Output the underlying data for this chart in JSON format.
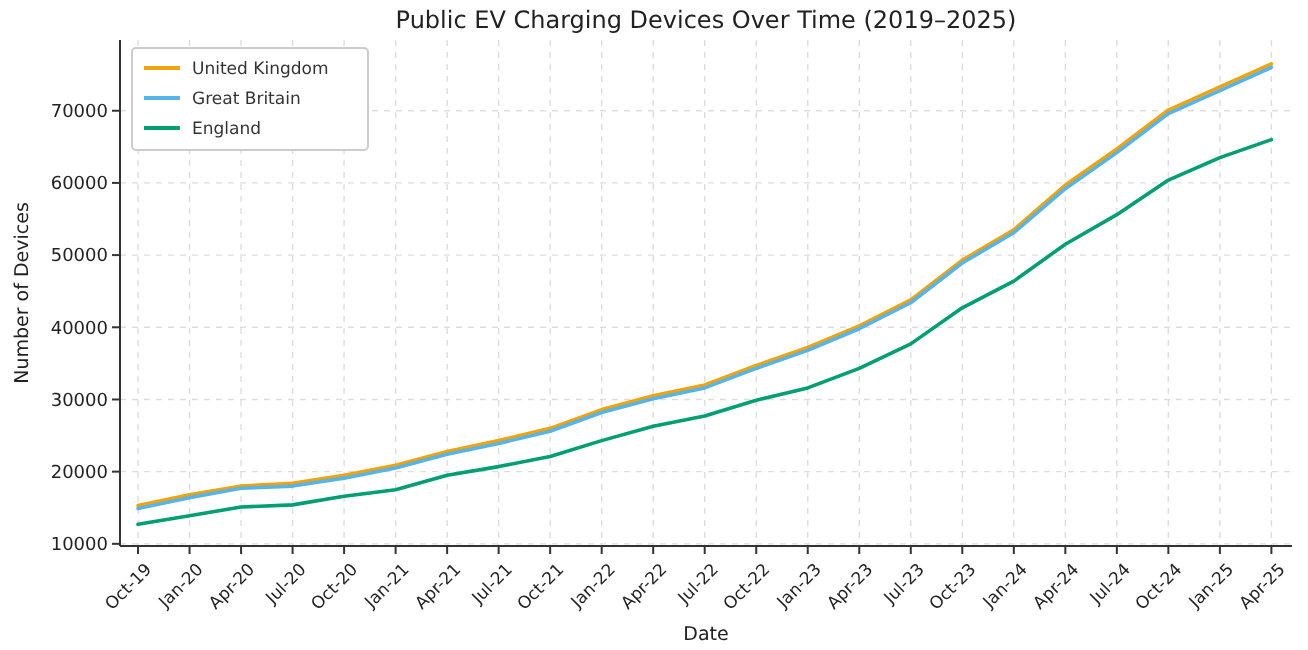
{
  "chart_data": {
    "type": "line",
    "title": "Public EV Charging Devices Over Time (2019–2025)",
    "xlabel": "Date",
    "ylabel": "Number of Devices",
    "categories": [
      "Oct-19",
      "Jan-20",
      "Apr-20",
      "Jul-20",
      "Oct-20",
      "Jan-21",
      "Apr-21",
      "Jul-21",
      "Oct-21",
      "Jan-22",
      "Apr-22",
      "Jul-22",
      "Oct-22",
      "Jan-23",
      "Apr-23",
      "Jul-23",
      "Oct-23",
      "Jan-24",
      "Apr-24",
      "Jul-24",
      "Oct-24",
      "Jan-25",
      "Apr-25"
    ],
    "series": [
      {
        "name": "United Kingdom",
        "color": "#f0a30a",
        "values": [
          15300,
          16800,
          18000,
          18400,
          19500,
          20900,
          22800,
          24300,
          26000,
          28600,
          30500,
          32000,
          34700,
          37200,
          40200,
          43800,
          49300,
          53500,
          59700,
          64700,
          70100,
          73300,
          76500
        ]
      },
      {
        "name": "Great Britain",
        "color": "#56b4e9",
        "values": [
          14900,
          16400,
          17700,
          18000,
          19100,
          20500,
          22400,
          23900,
          25600,
          28200,
          30100,
          31600,
          34300,
          36800,
          39800,
          43400,
          48900,
          53100,
          59200,
          64200,
          69600,
          72800,
          76000
        ]
      },
      {
        "name": "England",
        "color": "#009e73",
        "values": [
          12700,
          13900,
          15100,
          15400,
          16600,
          17500,
          19500,
          20700,
          22100,
          24300,
          26300,
          27700,
          29900,
          31600,
          34300,
          37700,
          42700,
          46400,
          51500,
          55600,
          60400,
          63500,
          66000
        ]
      }
    ],
    "ylim": [
      9700,
      79800
    ],
    "yticks": [
      10000,
      20000,
      30000,
      40000,
      50000,
      60000,
      70000
    ],
    "grid": true,
    "legend": "top left",
    "marker": "none",
    "line_style": "solid"
  }
}
